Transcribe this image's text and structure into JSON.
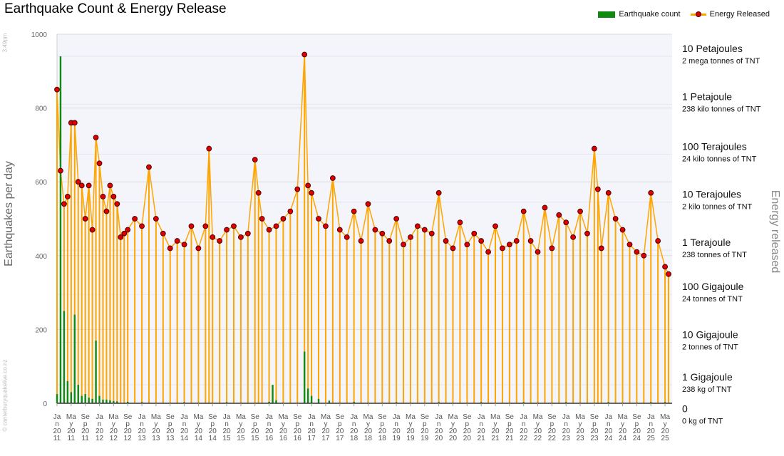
{
  "chart_data": {
    "type": "bar",
    "title": "Earthquake Count & Energy Release",
    "ylabel": "Earthquakes per day",
    "ylabel_right": "Energy released",
    "ylim": [
      0,
      1000
    ],
    "grid": true,
    "legend_position": "top-right",
    "timestamp": "3:49pm",
    "watermark": "© canterburyquakelive.co.nz",
    "y_ticks": [
      0,
      200,
      400,
      600,
      800,
      1000
    ],
    "x_tick_labels": [
      "Jan 2011",
      "May 2011",
      "Sep 2011",
      "Jan 2012",
      "May 2012",
      "Sep 2012",
      "Jan 2013",
      "May 2013",
      "Sep 2013",
      "Jan 2014",
      "May 2014",
      "Sep 2014",
      "Jan 2015",
      "May 2015",
      "Sep 2015",
      "Jan 2016",
      "May 2016",
      "Sep 2016",
      "Jan 2017",
      "May 2017",
      "Sep 2017",
      "Jan 2018",
      "May 2018",
      "Sep 2018",
      "Jan 2019",
      "May 2019",
      "Sep 2019",
      "Jan 2020",
      "May 2020",
      "Sep 2020",
      "Jan 2021",
      "May 2021",
      "Sep 2021",
      "Jan 2022",
      "May 2022",
      "Sep 2022",
      "Jan 2023",
      "May 2023",
      "Sep 2023",
      "Jan 2024",
      "May 2024",
      "Sep 2024",
      "Jan 2025",
      "May 2025"
    ],
    "energy_scale": [
      {
        "value": 940,
        "label": "10 Petajoules",
        "tnt": "2 mega tonnes of TNT"
      },
      {
        "value": 810,
        "label": "1 Petajoule",
        "tnt": "238 kilo tonnes of TNT"
      },
      {
        "value": 675,
        "label": "100 Terajoules",
        "tnt": "24 kilo tonnes of TNT"
      },
      {
        "value": 545,
        "label": "10 Terajoules",
        "tnt": "2 kilo tonnes of TNT"
      },
      {
        "value": 415,
        "label": "1 Terajoule",
        "tnt": "238 tonnes of TNT"
      },
      {
        "value": 295,
        "label": "100 Gigajoule",
        "tnt": "24 tonnes of TNT"
      },
      {
        "value": 165,
        "label": "10 Gigajoule",
        "tnt": "2 tonnes of TNT"
      },
      {
        "value": 50,
        "label": "1 Gigajoule",
        "tnt": "238 kg of TNT"
      },
      {
        "value": -36,
        "label": "0",
        "tnt": "0 kg of TNT"
      }
    ],
    "series": [
      {
        "name": "Earthquake count",
        "color": "#108a10",
        "type": "bar",
        "points": [
          [
            "Jan 2011",
            25
          ],
          [
            "Feb 2011",
            940
          ],
          [
            "Mar 2011",
            250
          ],
          [
            "Apr 2011",
            60
          ],
          [
            "May 2011",
            30
          ],
          [
            "Jun 2011",
            240
          ],
          [
            "Jul 2011",
            50
          ],
          [
            "Aug 2011",
            20
          ],
          [
            "Sep 2011",
            25
          ],
          [
            "Oct 2011",
            15
          ],
          [
            "Nov 2011",
            12
          ],
          [
            "Dec 2011",
            170
          ],
          [
            "Jan 2012",
            20
          ],
          [
            "Feb 2012",
            10
          ],
          [
            "Mar 2012",
            10
          ],
          [
            "Apr 2012",
            8
          ],
          [
            "May 2012",
            6
          ],
          [
            "Jun 2012",
            5
          ],
          [
            "Sep 2012",
            4
          ],
          [
            "Jan 2013",
            3
          ],
          [
            "Jan 2014",
            3
          ],
          [
            "Jan 2015",
            3
          ],
          [
            "Jan 2016",
            4
          ],
          [
            "Feb 2016",
            50
          ],
          [
            "Mar 2016",
            8
          ],
          [
            "Nov 2016",
            140
          ],
          [
            "Dec 2016",
            40
          ],
          [
            "Jan 2017",
            20
          ],
          [
            "Mar 2017",
            12
          ],
          [
            "Jun 2017",
            7
          ],
          [
            "Jan 2018",
            4
          ],
          [
            "Jan 2019",
            3
          ],
          [
            "Jan 2020",
            3
          ],
          [
            "Jan 2021",
            3
          ],
          [
            "Jan 2022",
            3
          ],
          [
            "Jan 2023",
            3
          ],
          [
            "Jan 2024",
            3
          ],
          [
            "Jan 2025",
            3
          ],
          [
            "May 2025",
            3
          ]
        ]
      },
      {
        "name": "Energy Released",
        "color": "#ffa500",
        "marker_color": "#e00000",
        "type": "line-markers",
        "points": [
          [
            "Jan 2011",
            850
          ],
          [
            "Feb 2011",
            630
          ],
          [
            "Mar 2011",
            540
          ],
          [
            "Apr 2011",
            560
          ],
          [
            "May 2011",
            760
          ],
          [
            "Jun 2011",
            760
          ],
          [
            "Jul 2011",
            600
          ],
          [
            "Aug 2011",
            590
          ],
          [
            "Sep 2011",
            500
          ],
          [
            "Oct 2011",
            590
          ],
          [
            "Nov 2011",
            470
          ],
          [
            "Dec 2011",
            720
          ],
          [
            "Jan 2012",
            650
          ],
          [
            "Feb 2012",
            560
          ],
          [
            "Mar 2012",
            520
          ],
          [
            "Apr 2012",
            590
          ],
          [
            "May 2012",
            560
          ],
          [
            "Jun 2012",
            540
          ],
          [
            "Jul 2012",
            450
          ],
          [
            "Aug 2012",
            460
          ],
          [
            "Sep 2012",
            470
          ],
          [
            "Nov 2012",
            500
          ],
          [
            "Jan 2013",
            480
          ],
          [
            "Mar 2013",
            640
          ],
          [
            "May 2013",
            500
          ],
          [
            "Jul 2013",
            460
          ],
          [
            "Sep 2013",
            420
          ],
          [
            "Nov 2013",
            440
          ],
          [
            "Jan 2014",
            430
          ],
          [
            "Mar 2014",
            480
          ],
          [
            "May 2014",
            420
          ],
          [
            "Jul 2014",
            480
          ],
          [
            "Aug 2014",
            690
          ],
          [
            "Sep 2014",
            450
          ],
          [
            "Nov 2014",
            440
          ],
          [
            "Jan 2015",
            470
          ],
          [
            "Mar 2015",
            480
          ],
          [
            "May 2015",
            450
          ],
          [
            "Jul 2015",
            460
          ],
          [
            "Sep 2015",
            660
          ],
          [
            "Oct 2015",
            570
          ],
          [
            "Nov 2015",
            500
          ],
          [
            "Jan 2016",
            470
          ],
          [
            "Mar 2016",
            480
          ],
          [
            "May 2016",
            500
          ],
          [
            "Jul 2016",
            520
          ],
          [
            "Sep 2016",
            580
          ],
          [
            "Nov 2016",
            945
          ],
          [
            "Dec 2016",
            590
          ],
          [
            "Jan 2017",
            570
          ],
          [
            "Mar 2017",
            500
          ],
          [
            "May 2017",
            480
          ],
          [
            "Jul 2017",
            610
          ],
          [
            "Sep 2017",
            470
          ],
          [
            "Nov 2017",
            450
          ],
          [
            "Jan 2018",
            520
          ],
          [
            "Mar 2018",
            440
          ],
          [
            "May 2018",
            540
          ],
          [
            "Jul 2018",
            470
          ],
          [
            "Sep 2018",
            460
          ],
          [
            "Nov 2018",
            440
          ],
          [
            "Jan 2019",
            500
          ],
          [
            "Mar 2019",
            430
          ],
          [
            "May 2019",
            450
          ],
          [
            "Jul 2019",
            480
          ],
          [
            "Sep 2019",
            470
          ],
          [
            "Nov 2019",
            460
          ],
          [
            "Jan 2020",
            570
          ],
          [
            "Mar 2020",
            440
          ],
          [
            "May 2020",
            420
          ],
          [
            "Jul 2020",
            490
          ],
          [
            "Sep 2020",
            430
          ],
          [
            "Nov 2020",
            460
          ],
          [
            "Jan 2021",
            440
          ],
          [
            "Mar 2021",
            410
          ],
          [
            "May 2021",
            480
          ],
          [
            "Jul 2021",
            420
          ],
          [
            "Sep 2021",
            430
          ],
          [
            "Nov 2021",
            440
          ],
          [
            "Jan 2022",
            520
          ],
          [
            "Mar 2022",
            440
          ],
          [
            "May 2022",
            410
          ],
          [
            "Jul 2022",
            530
          ],
          [
            "Sep 2022",
            420
          ],
          [
            "Nov 2022",
            510
          ],
          [
            "Jan 2023",
            490
          ],
          [
            "Mar 2023",
            450
          ],
          [
            "May 2023",
            520
          ],
          [
            "Jul 2023",
            460
          ],
          [
            "Sep 2023",
            690
          ],
          [
            "Oct 2023",
            580
          ],
          [
            "Nov 2023",
            420
          ],
          [
            "Jan 2024",
            570
          ],
          [
            "Mar 2024",
            500
          ],
          [
            "May 2024",
            470
          ],
          [
            "Jul 2024",
            430
          ],
          [
            "Sep 2024",
            410
          ],
          [
            "Nov 2024",
            400
          ],
          [
            "Jan 2025",
            570
          ],
          [
            "Mar 2025",
            440
          ],
          [
            "May 2025",
            370
          ],
          [
            "Jun 2025",
            350
          ]
        ]
      }
    ]
  }
}
